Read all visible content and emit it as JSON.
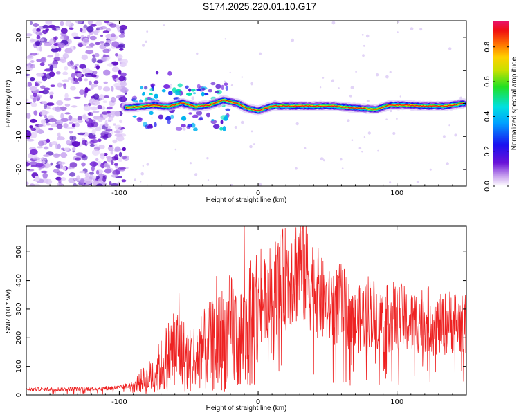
{
  "title": "S174.2025.220.01.10.G17",
  "colors": {
    "snr_line": "#ee2222",
    "spectrogram_low": "#7b12d6",
    "spectrogram_high": "#e8122e",
    "axis": "#000000"
  },
  "chart_data": [
    {
      "type": "heatmap",
      "name": "spectrogram",
      "xlabel": "Height of straight line (km)",
      "ylabel": "Frequency (Hz)",
      "xlim": [
        -167,
        150
      ],
      "ylim": [
        -25,
        25
      ],
      "x_ticks": [
        -100,
        0,
        100
      ],
      "y_ticks": [
        -20,
        -10,
        0,
        10,
        20
      ],
      "x_tick_labels": [
        "-100",
        "0",
        "100"
      ],
      "y_tick_labels": [
        "-20",
        "-10",
        "0",
        "10",
        "20"
      ],
      "colorbar": {
        "label": "Normalized spectral amplitude",
        "range": [
          0,
          0.95
        ],
        "ticks": [
          0,
          0.2,
          0.4,
          0.6,
          0.8
        ],
        "tick_labels": [
          "0.0",
          "0.2",
          "0.4",
          "0.6",
          "0.8"
        ]
      },
      "signal_track": [
        {
          "x": -95,
          "y": -1.2
        },
        {
          "x": -85,
          "y": -1.0
        },
        {
          "x": -75,
          "y": -0.5
        },
        {
          "x": -65,
          "y": -1.0
        },
        {
          "x": -55,
          "y": 0.2
        },
        {
          "x": -45,
          "y": -1.0
        },
        {
          "x": -35,
          "y": -0.5
        },
        {
          "x": -25,
          "y": 1.0
        },
        {
          "x": -15,
          "y": 0.0
        },
        {
          "x": -8,
          "y": -1.5
        },
        {
          "x": 0,
          "y": -2.2
        },
        {
          "x": 10,
          "y": -0.8
        },
        {
          "x": 25,
          "y": -0.8
        },
        {
          "x": 40,
          "y": -0.8
        },
        {
          "x": 55,
          "y": -0.8
        },
        {
          "x": 65,
          "y": -1.2
        },
        {
          "x": 75,
          "y": -1.5
        },
        {
          "x": 85,
          "y": -1.8
        },
        {
          "x": 95,
          "y": -0.5
        },
        {
          "x": 105,
          "y": -0.5
        },
        {
          "x": 120,
          "y": -0.8
        },
        {
          "x": 135,
          "y": -0.8
        },
        {
          "x": 148,
          "y": 0.0
        }
      ],
      "noise_region_x": [
        -167,
        -95
      ]
    },
    {
      "type": "line",
      "name": "snr",
      "xlabel": "Height of straight line (km)",
      "ylabel": "SNR (10 * v/v)",
      "xlim": [
        -167,
        150
      ],
      "ylim": [
        0,
        590
      ],
      "x_ticks": [
        -100,
        0,
        100
      ],
      "y_ticks": [
        0,
        100,
        200,
        300,
        400,
        500
      ],
      "x_tick_labels": [
        "-100",
        "0",
        "100"
      ],
      "y_tick_labels": [
        "0",
        "100",
        "200",
        "300",
        "400",
        "500"
      ],
      "envelope": [
        {
          "x": -167,
          "y": 20
        },
        {
          "x": -140,
          "y": 20
        },
        {
          "x": -115,
          "y": 22
        },
        {
          "x": -100,
          "y": 25
        },
        {
          "x": -90,
          "y": 35
        },
        {
          "x": -80,
          "y": 55
        },
        {
          "x": -70,
          "y": 100
        },
        {
          "x": -60,
          "y": 170
        },
        {
          "x": -50,
          "y": 120
        },
        {
          "x": -40,
          "y": 150
        },
        {
          "x": -30,
          "y": 180
        },
        {
          "x": -20,
          "y": 220
        },
        {
          "x": -10,
          "y": 200
        },
        {
          "x": 0,
          "y": 300
        },
        {
          "x": 10,
          "y": 370
        },
        {
          "x": 20,
          "y": 410
        },
        {
          "x": 30,
          "y": 450
        },
        {
          "x": 40,
          "y": 380
        },
        {
          "x": 50,
          "y": 300
        },
        {
          "x": 60,
          "y": 320
        },
        {
          "x": 70,
          "y": 250
        },
        {
          "x": 80,
          "y": 300
        },
        {
          "x": 90,
          "y": 260
        },
        {
          "x": 100,
          "y": 280
        },
        {
          "x": 110,
          "y": 250
        },
        {
          "x": 120,
          "y": 270
        },
        {
          "x": 130,
          "y": 240
        },
        {
          "x": 140,
          "y": 260
        },
        {
          "x": 150,
          "y": 240
        }
      ],
      "peaks": [
        {
          "x": -57,
          "y": 355
        },
        {
          "x": -35,
          "y": 325
        },
        {
          "x": -30,
          "y": 415
        },
        {
          "x": -10,
          "y": 590
        },
        {
          "x": 2,
          "y": 510
        },
        {
          "x": 30,
          "y": 565
        },
        {
          "x": 100,
          "y": 370
        }
      ]
    }
  ]
}
